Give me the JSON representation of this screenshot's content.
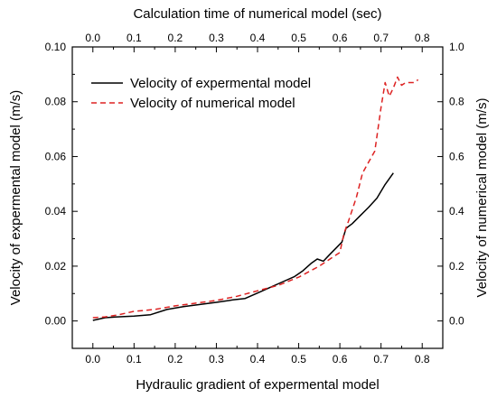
{
  "chart_data": {
    "type": "line",
    "title": "",
    "xlabel": "Hydraulic gradient of expermental model",
    "x2label": "Calculation time of numerical model (sec)",
    "ylabel": "Velocity of expermental model (m/s)",
    "y2label": "Velocity of numerical model (m/s)",
    "xlim": [
      -0.05,
      0.85
    ],
    "ylim": [
      -0.01,
      0.1
    ],
    "y2lim": [
      -0.1,
      1.0
    ],
    "xticks": [
      "0.0",
      "0.1",
      "0.2",
      "0.3",
      "0.4",
      "0.5",
      "0.6",
      "0.7",
      "0.8"
    ],
    "x2ticks": [
      "0.0",
      "0.1",
      "0.2",
      "0.3",
      "0.4",
      "0.5",
      "0.6",
      "0.7",
      "0.8"
    ],
    "yticks": [
      "0.00",
      "0.02",
      "0.04",
      "0.06",
      "0.08",
      "0.10"
    ],
    "y2ticks": [
      "0.0",
      "0.2",
      "0.4",
      "0.6",
      "0.8",
      "1.0"
    ],
    "grid": false,
    "legend_position": "top-left",
    "series": [
      {
        "name": "Velocity of expermental model",
        "axis": "bottom-left",
        "color": "#000000",
        "style": "solid",
        "x": [
          0.0,
          0.03,
          0.06,
          0.1,
          0.14,
          0.18,
          0.22,
          0.26,
          0.3,
          0.34,
          0.37,
          0.4,
          0.43,
          0.46,
          0.49,
          0.51,
          0.53,
          0.545,
          0.56,
          0.575,
          0.59,
          0.605,
          0.615,
          0.63,
          0.65,
          0.67,
          0.69,
          0.71,
          0.73
        ],
        "values": [
          0.0002,
          0.0012,
          0.0015,
          0.0018,
          0.0023,
          0.0042,
          0.0052,
          0.006,
          0.0068,
          0.0077,
          0.0082,
          0.0102,
          0.0122,
          0.0142,
          0.0162,
          0.0183,
          0.021,
          0.0226,
          0.0218,
          0.0242,
          0.0265,
          0.0288,
          0.0338,
          0.0355,
          0.0385,
          0.0415,
          0.0448,
          0.0498,
          0.054
        ]
      },
      {
        "name": "Velocity of numerical model",
        "axis": "top-right",
        "color": "#dd2222",
        "style": "dashed",
        "x": [
          0.0,
          0.03,
          0.06,
          0.1,
          0.15,
          0.2,
          0.25,
          0.3,
          0.35,
          0.4,
          0.45,
          0.5,
          0.55,
          0.58,
          0.6,
          0.61,
          0.62,
          0.64,
          0.655,
          0.67,
          0.685,
          0.7,
          0.71,
          0.72,
          0.73,
          0.74,
          0.75,
          0.76,
          0.77,
          0.78,
          0.79
        ],
        "values": [
          0.012,
          0.015,
          0.022,
          0.035,
          0.042,
          0.055,
          0.065,
          0.075,
          0.09,
          0.11,
          0.13,
          0.16,
          0.2,
          0.23,
          0.25,
          0.32,
          0.36,
          0.45,
          0.54,
          0.58,
          0.62,
          0.78,
          0.87,
          0.82,
          0.85,
          0.89,
          0.86,
          0.87,
          0.87,
          0.87,
          0.88
        ]
      }
    ]
  }
}
